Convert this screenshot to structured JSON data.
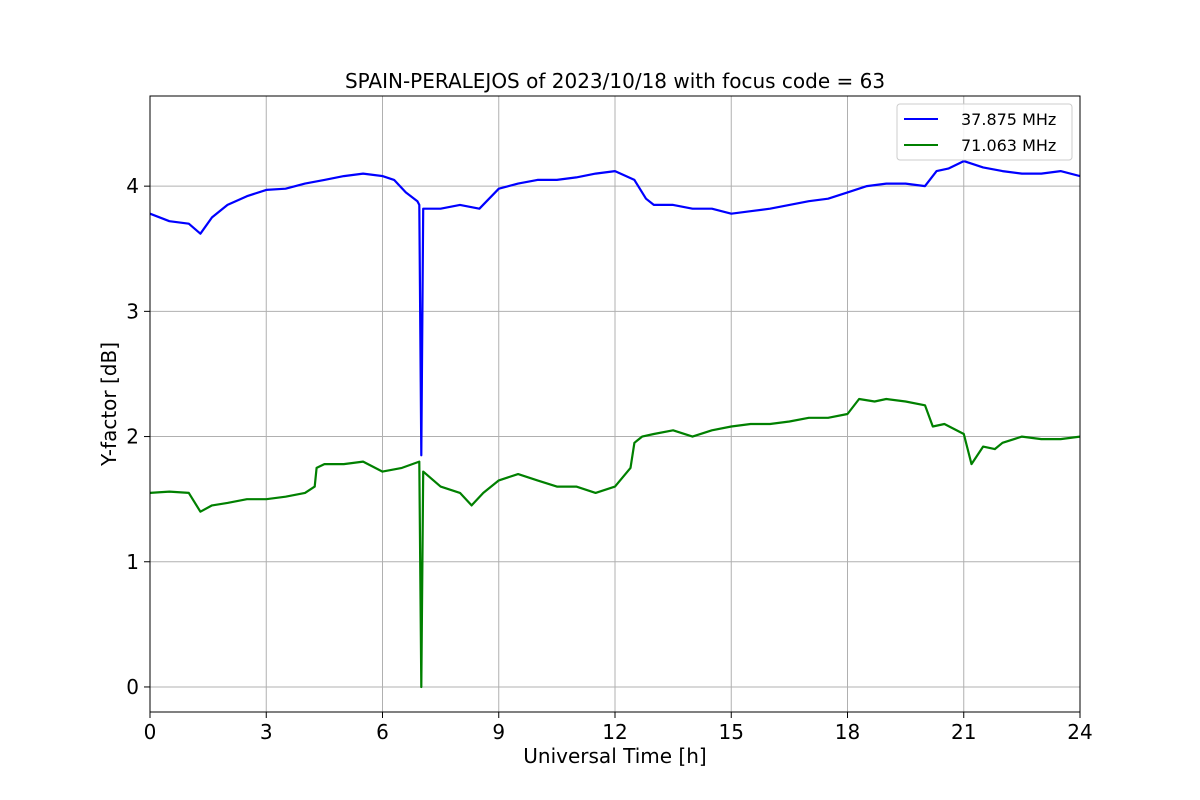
{
  "chart_data": {
    "type": "line",
    "title": "SPAIN-PERALEJOS of 2023/10/18 with focus code = 63",
    "xlabel": "Universal Time [h]",
    "ylabel": "Y-factor [dB]",
    "xlim": [
      0,
      24
    ],
    "ylim": [
      -0.2,
      4.72
    ],
    "xticks": [
      0,
      3,
      6,
      9,
      12,
      15,
      18,
      21,
      24
    ],
    "yticks": [
      0,
      1,
      2,
      3,
      4
    ],
    "grid": true,
    "legend_position": "top-right",
    "series": [
      {
        "name": "37.875 MHz",
        "color": "#0000ff",
        "x": [
          0,
          0.5,
          1.0,
          1.3,
          1.6,
          2.0,
          2.5,
          3.0,
          3.5,
          4.0,
          4.5,
          5.0,
          5.5,
          6.0,
          6.3,
          6.6,
          6.9,
          6.95,
          7.0,
          7.05,
          7.5,
          8.0,
          8.5,
          9.0,
          9.5,
          10.0,
          10.5,
          11.0,
          11.5,
          12.0,
          12.5,
          12.8,
          13.0,
          13.5,
          14.0,
          14.5,
          15.0,
          15.5,
          16.0,
          16.5,
          17.0,
          17.5,
          18.0,
          18.5,
          19.0,
          19.5,
          20.0,
          20.3,
          20.6,
          21.0,
          21.5,
          22.0,
          22.5,
          23.0,
          23.5,
          24.0
        ],
        "y": [
          3.78,
          3.72,
          3.7,
          3.62,
          3.75,
          3.85,
          3.92,
          3.97,
          3.98,
          4.02,
          4.05,
          4.08,
          4.1,
          4.08,
          4.05,
          3.95,
          3.88,
          3.85,
          1.85,
          3.82,
          3.82,
          3.85,
          3.82,
          3.98,
          4.02,
          4.05,
          4.05,
          4.07,
          4.1,
          4.12,
          4.05,
          3.9,
          3.85,
          3.85,
          3.82,
          3.82,
          3.78,
          3.8,
          3.82,
          3.85,
          3.88,
          3.9,
          3.95,
          4.0,
          4.02,
          4.02,
          4.0,
          4.12,
          4.14,
          4.2,
          4.15,
          4.12,
          4.1,
          4.1,
          4.12,
          4.08
        ]
      },
      {
        "name": "71.063 MHz",
        "color": "#008000",
        "x": [
          0,
          0.5,
          1.0,
          1.3,
          1.6,
          2.0,
          2.5,
          3.0,
          3.5,
          4.0,
          4.25,
          4.3,
          4.5,
          5.0,
          5.5,
          6.0,
          6.5,
          6.95,
          7.0,
          7.05,
          7.5,
          8.0,
          8.3,
          8.6,
          9.0,
          9.5,
          10.0,
          10.5,
          11.0,
          11.5,
          12.0,
          12.4,
          12.5,
          12.7,
          13.0,
          13.5,
          14.0,
          14.5,
          15.0,
          15.5,
          16.0,
          16.5,
          17.0,
          17.5,
          18.0,
          18.3,
          18.7,
          19.0,
          19.5,
          20.0,
          20.2,
          20.5,
          21.0,
          21.2,
          21.5,
          21.8,
          22.0,
          22.5,
          23.0,
          23.5,
          24.0
        ],
        "y": [
          1.55,
          1.56,
          1.55,
          1.4,
          1.45,
          1.47,
          1.5,
          1.5,
          1.52,
          1.55,
          1.6,
          1.75,
          1.78,
          1.78,
          1.8,
          1.72,
          1.75,
          1.8,
          0.0,
          1.72,
          1.6,
          1.55,
          1.45,
          1.55,
          1.65,
          1.7,
          1.65,
          1.6,
          1.6,
          1.55,
          1.6,
          1.75,
          1.95,
          2.0,
          2.02,
          2.05,
          2.0,
          2.05,
          2.08,
          2.1,
          2.1,
          2.12,
          2.15,
          2.15,
          2.18,
          2.3,
          2.28,
          2.3,
          2.28,
          2.25,
          2.08,
          2.1,
          2.02,
          1.78,
          1.92,
          1.9,
          1.95,
          2.0,
          1.98,
          1.98,
          2.0
        ]
      }
    ]
  }
}
